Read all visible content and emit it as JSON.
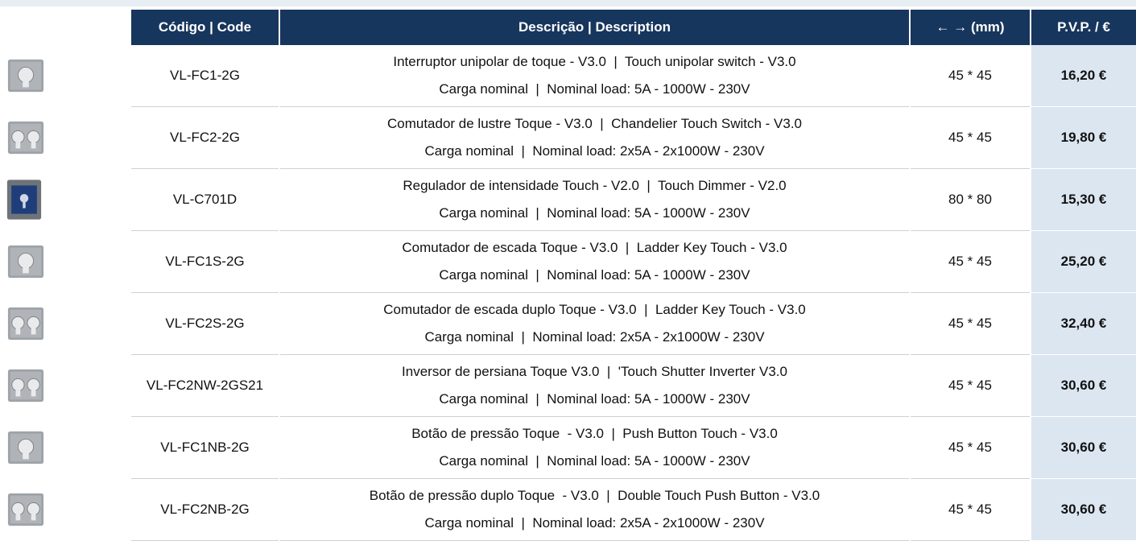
{
  "table": {
    "header": [
      "Código | Code",
      "Descrição | Description",
      "← → (mm)",
      "P.V.P. / €"
    ],
    "rows": [
      {
        "code": "VL-FC1-2G",
        "description": [
          "Interruptor unipolar de toque - V3.0  |  Touch unipolar switch - V3.0",
          "Carga nominal  |  Nominal load: 5A - 1000W - 230V"
        ],
        "size": "45 * 45",
        "price": "16,20 €"
      },
      {
        "code": "VL-FC2-2G",
        "description": [
          "Comutador de lustre Toque - V3.0  |  Chandelier Touch Switch - V3.0",
          "Carga nominal  |  Nominal load: 2x5A - 2x1000W - 230V"
        ],
        "size": "45 * 45",
        "price": "19,80 €"
      },
      {
        "code": "VL-C701D",
        "description": [
          "Regulador de intensidade Touch - V2.0  |  Touch Dimmer - V2.0",
          "Carga nominal  |  Nominal load: 5A - 1000W - 230V"
        ],
        "size": "80 * 80",
        "price": "15,30 €"
      },
      {
        "code": "VL-FC1S-2G",
        "description": [
          "Comutador de escada Toque - V3.0  |  Ladder Key Touch - V3.0",
          "Carga nominal  |  Nominal load: 5A - 1000W - 230V"
        ],
        "size": "45 * 45",
        "price": "25,20 €"
      },
      {
        "code": "VL-FC2S-2G",
        "description": [
          "Comutador de escada duplo Toque - V3.0  |  Ladder Key Touch - V3.0",
          "Carga nominal  |  Nominal load: 2x5A - 2x1000W - 230V"
        ],
        "size": "45 * 45",
        "price": "32,40 €"
      },
      {
        "code": "VL-FC2NW-2GS21",
        "description": [
          "Inversor de persiana Toque V3.0  |  'Touch Shutter Inverter V3.0",
          "Carga nominal  |  Nominal load: 5A - 1000W - 230V"
        ],
        "size": "45 * 45",
        "price": "30,60 €"
      },
      {
        "code": "VL-FC1NB-2G",
        "description": [
          "Botão de pressão Toque  - V3.0  |  Push Button Touch - V3.0",
          "Carga nominal  |  Nominal load: 5A - 1000W - 230V"
        ],
        "size": "45 * 45",
        "price": "30,60 €"
      },
      {
        "code": "VL-FC2NB-2G",
        "description": [
          "Botão de pressão duplo Toque  - V3.0  |  Double Touch Push Button - V3.0",
          "Carga nominal  |  Nominal load: 2x5A - 2x1000W - 230V"
        ],
        "size": "45 * 45",
        "price": "30,60 €"
      }
    ]
  }
}
